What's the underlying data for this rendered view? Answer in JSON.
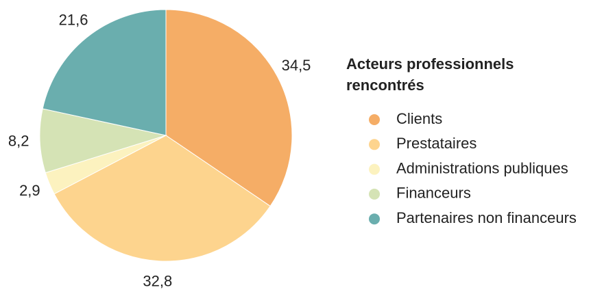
{
  "chart_data": {
    "type": "pie",
    "legend_title": "Acteurs professionnels rencontrés",
    "categories": [
      "Clients",
      "Prestataires",
      "Administrations publiques",
      "Financeurs",
      "Partenaires non financeurs"
    ],
    "values": [
      34.5,
      32.8,
      2.9,
      8.2,
      21.6
    ],
    "value_labels": [
      "34,5",
      "32,8",
      "2,9",
      "8,2",
      "21,6"
    ],
    "colors": [
      "#f5ad66",
      "#fdd48e",
      "#fcf2bf",
      "#d5e3b5",
      "#6aaeae"
    ],
    "legend": "right"
  }
}
